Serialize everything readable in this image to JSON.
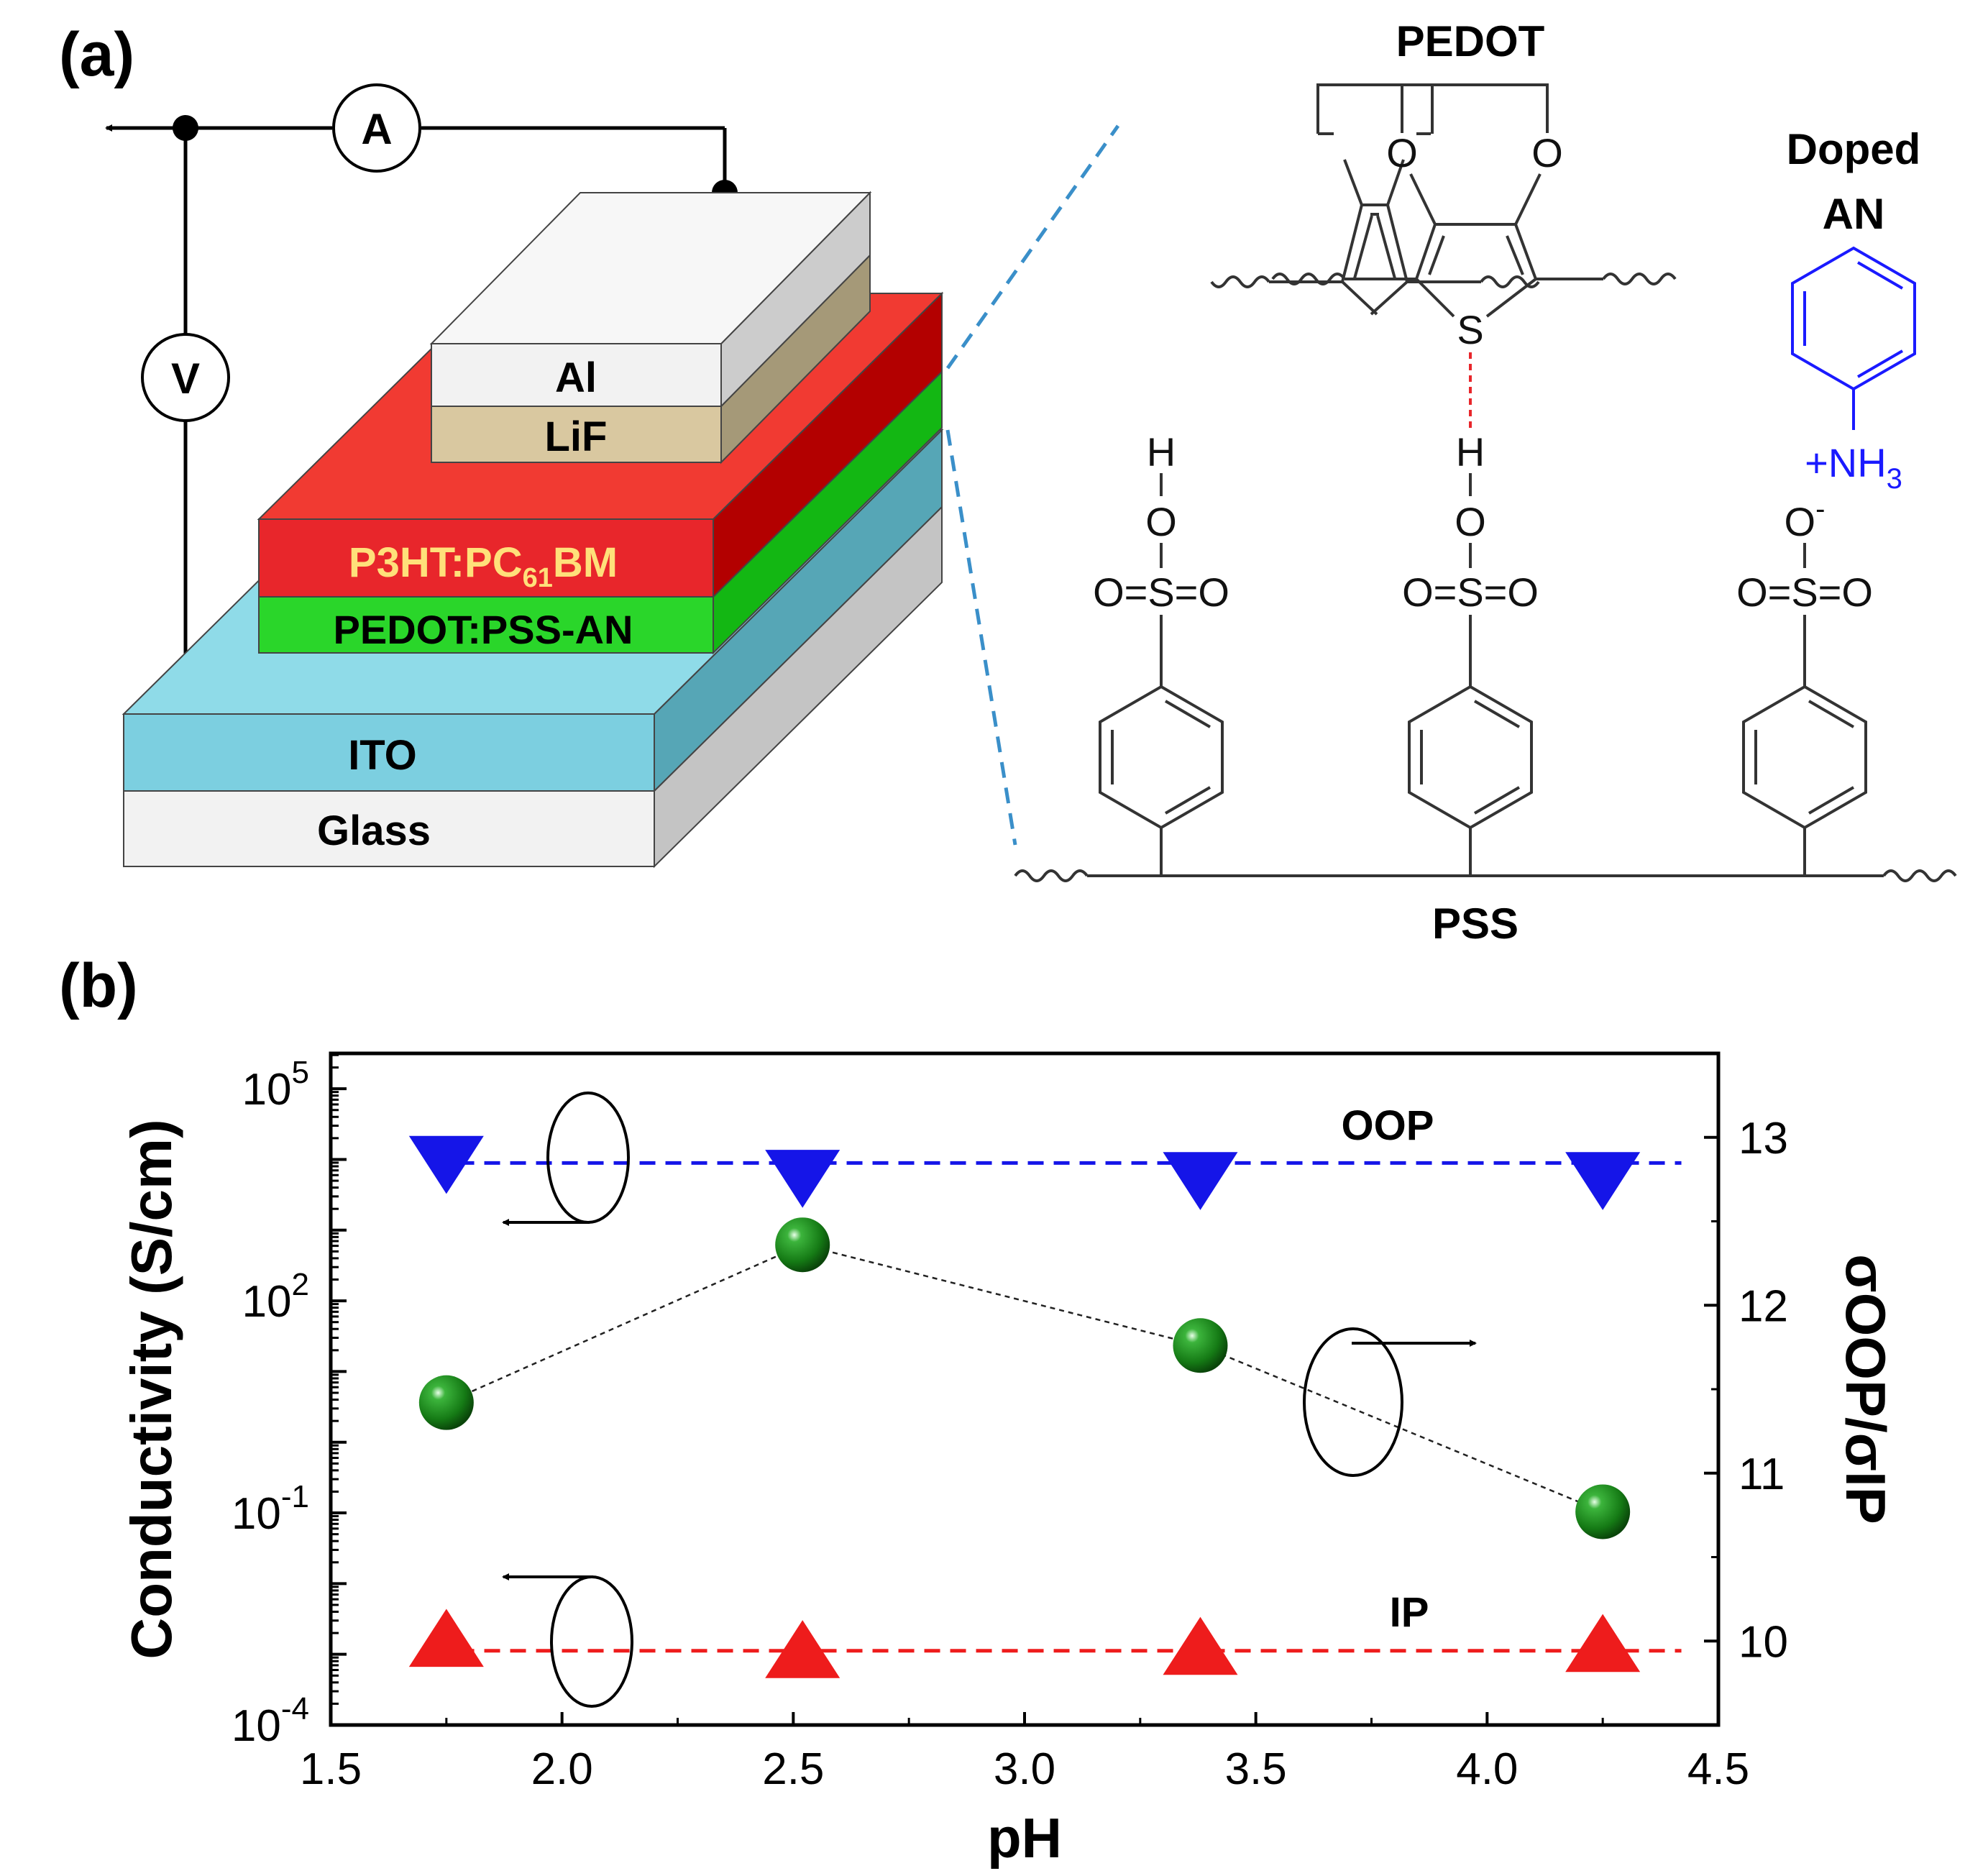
{
  "panel_a": {
    "label": "(a)",
    "meter_ammeter": "A",
    "meter_voltmeter": "V",
    "layers": {
      "al": "Al",
      "lif": "LiF",
      "active_main": "P3HT:PC",
      "active_sub": "61",
      "active_tail": "BM",
      "htl": "PEDOT:PSS-AN",
      "ito": "ITO",
      "glass": "Glass"
    },
    "pedot_label": "PEDOT",
    "doped_an_line1": "Doped",
    "doped_an_line2": "AN",
    "oxygen": "O",
    "sulfur": "S",
    "hydrogen": "H",
    "sulfonate": "O=S=O",
    "o_minus": "O",
    "o_minus_charge": "-",
    "nh3_main": "+NH",
    "nh3_sub": "3",
    "pss_label": "PSS",
    "colors": {
      "al": "#f2f2f2",
      "lif": "#d9c8a0",
      "active": "#e8262b",
      "htl": "#2ad62a",
      "ito": "#7ccfe0",
      "glass": "#f0f0f0",
      "aniline": "#1a1aff",
      "hbond": "#e8262b",
      "zoom_lines": "#3a8fc9"
    }
  },
  "panel_b": {
    "label": "(b)",
    "chart_data": {
      "type": "scatter",
      "title": "",
      "xlabel": "pH",
      "ylabel_left": "Conductivity (S/cm)",
      "ylabel_right": "σOOP/σIP",
      "xlim": [
        1.5,
        4.5
      ],
      "xticks": [
        "1.5",
        "2.0",
        "2.5",
        "3.0",
        "3.5",
        "4.0",
        "4.5"
      ],
      "ylim_left_log10": [
        -4,
        5.5
      ],
      "yticks_left": [
        {
          "base": "10",
          "exp": "5",
          "log": 5
        },
        {
          "base": "10",
          "exp": "2",
          "log": 2
        },
        {
          "base": "10",
          "exp": "-1",
          "log": -1
        },
        {
          "base": "10",
          "exp": "-4",
          "log": -4
        }
      ],
      "ylim_right": [
        9.5,
        13.5
      ],
      "yticks_right": [
        "10",
        "11",
        "12",
        "13"
      ],
      "series": [
        {
          "name": "OOP",
          "axis": "left",
          "marker": "triangle-down",
          "color": "#1515e8",
          "x": [
            1.75,
            2.52,
            3.38,
            4.25
          ],
          "y": [
            11000,
            7000,
            6500,
            6500
          ],
          "fit_log10": 3.95
        },
        {
          "name": "IP",
          "axis": "left",
          "marker": "triangle-up",
          "color": "#ee1c1c",
          "x": [
            1.75,
            2.52,
            3.38,
            4.25
          ],
          "y": [
            0.0013,
            0.0009,
            0.001,
            0.0011
          ],
          "fit_log10": -2.95
        },
        {
          "name": "σOOP/σIP",
          "axis": "right",
          "marker": "sphere",
          "color": "#1a8a1a",
          "x": [
            1.75,
            2.52,
            3.38,
            4.25
          ],
          "y": [
            11.42,
            12.36,
            11.76,
            10.77
          ]
        }
      ],
      "annotations": [
        "OOP",
        "IP"
      ]
    }
  }
}
